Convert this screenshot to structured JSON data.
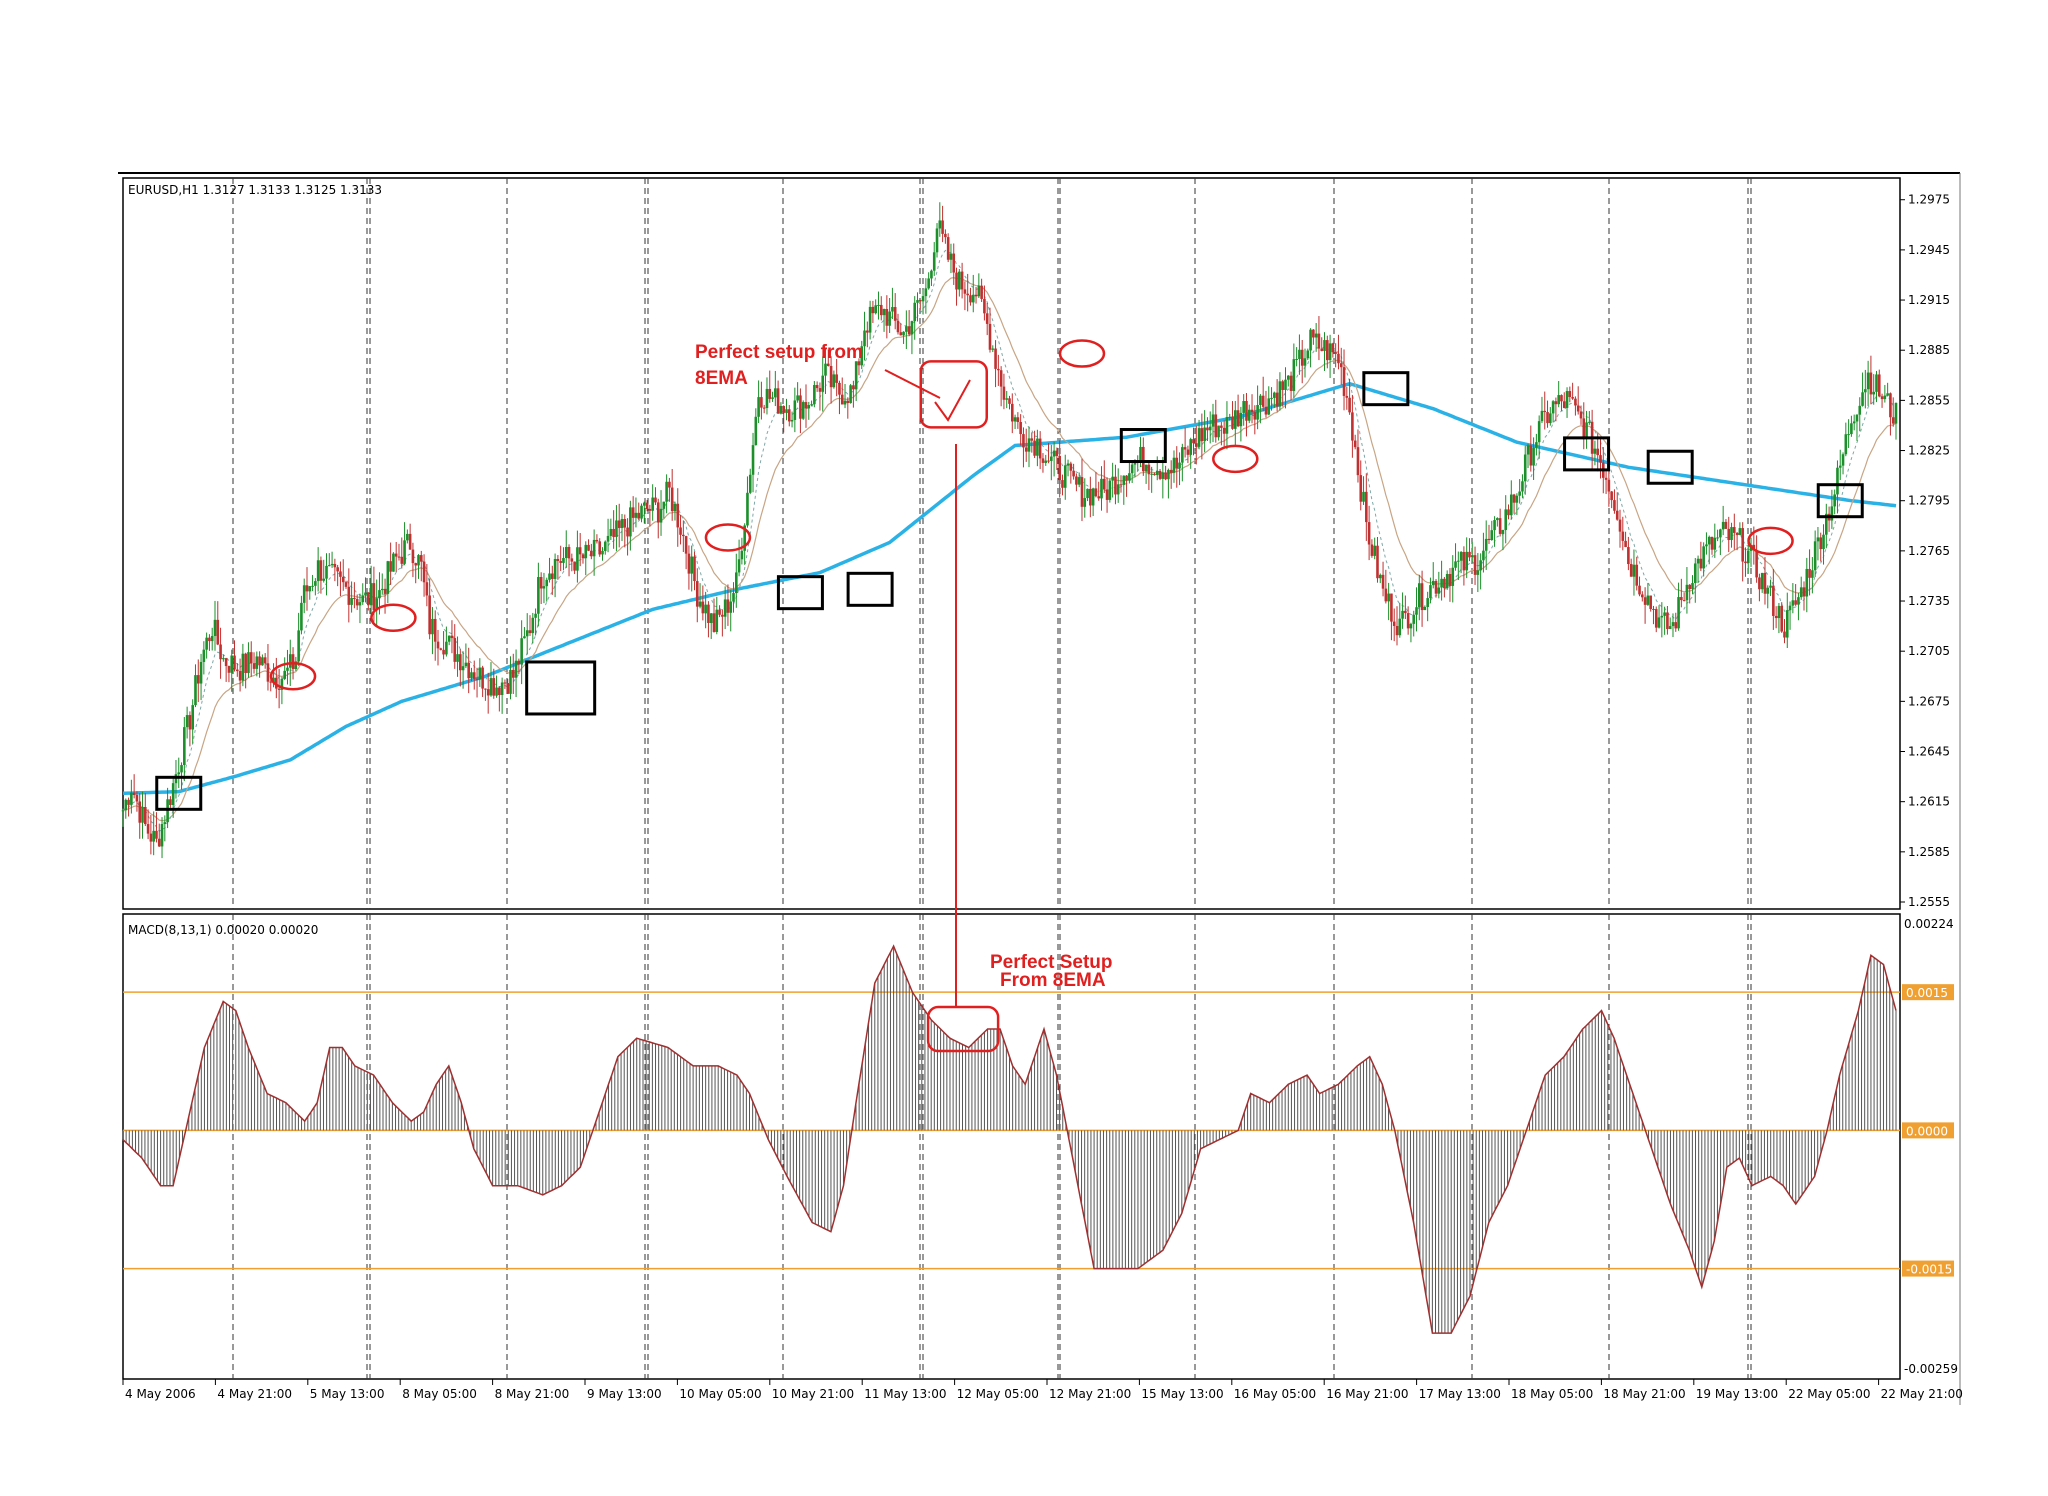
{
  "window": {
    "symbol_header": "EURUSD,H1  1.3127 1.3133 1.3125 1.3133"
  },
  "colors": {
    "bull": "#1a8f2a",
    "bear": "#c03030",
    "sma": "#2ab2e6",
    "ema_fast": "#7fa8a8",
    "ema_slow": "#c8a585",
    "macd_line": "#a03030",
    "level": "#f0a030",
    "annotation": "#e02020",
    "box": "#000000",
    "frame": "#000000"
  },
  "annotations": {
    "upper_text_1": "Perfect setup from",
    "upper_text_2": "8EMA",
    "lower_text_1": "Perfect Setup",
    "lower_text_2": "From 8EMA"
  },
  "chart_data": [
    {
      "type": "candlestick",
      "title": "EURUSD,H1  1.3127 1.3133 1.3125 1.3133",
      "price_labels": [
        "1.2975",
        "1.2945",
        "1.2915",
        "1.2885",
        "1.2855",
        "1.2825",
        "1.2795",
        "1.2765",
        "1.2735",
        "1.2705",
        "1.2675",
        "1.2645",
        "1.2615",
        "1.2585",
        "1.2555"
      ],
      "ylim": [
        1.2555,
        1.2985
      ],
      "x_tick_labels": [
        "4 May 2006",
        "4 May 21:00",
        "5 May 13:00",
        "8 May 05:00",
        "8 May 21:00",
        "9 May 13:00",
        "10 May 05:00",
        "10 May 21:00",
        "11 May 13:00",
        "12 May 05:00",
        "12 May 21:00",
        "15 May 13:00",
        "16 May 05:00",
        "16 May 21:00",
        "17 May 13:00",
        "18 May 05:00",
        "18 May 21:00",
        "19 May 13:00",
        "22 May 05:00",
        "22 May 21:00"
      ],
      "close_path": [
        [
          0,
          1.261
        ],
        [
          3,
          1.2625
        ],
        [
          8,
          1.26
        ],
        [
          12,
          1.259
        ],
        [
          18,
          1.2625
        ],
        [
          24,
          1.2665
        ],
        [
          28,
          1.27
        ],
        [
          32,
          1.272
        ],
        [
          36,
          1.27
        ],
        [
          42,
          1.2695
        ],
        [
          48,
          1.27
        ],
        [
          54,
          1.269
        ],
        [
          58,
          1.269
        ],
        [
          62,
          1.27
        ],
        [
          64,
          1.2735
        ],
        [
          70,
          1.2755
        ],
        [
          78,
          1.2745
        ],
        [
          86,
          1.2735
        ],
        [
          92,
          1.274
        ],
        [
          98,
          1.276
        ],
        [
          103,
          1.277
        ],
        [
          107,
          1.2755
        ],
        [
          110,
          1.272
        ],
        [
          116,
          1.271
        ],
        [
          122,
          1.27
        ],
        [
          128,
          1.269
        ],
        [
          134,
          1.2685
        ],
        [
          140,
          1.269
        ],
        [
          146,
          1.272
        ],
        [
          150,
          1.275
        ],
        [
          156,
          1.276
        ],
        [
          164,
          1.276
        ],
        [
          172,
          1.2765
        ],
        [
          180,
          1.278
        ],
        [
          188,
          1.279
        ],
        [
          192,
          1.279
        ],
        [
          196,
          1.28
        ],
        [
          200,
          1.278
        ],
        [
          206,
          1.274
        ],
        [
          212,
          1.272
        ],
        [
          216,
          1.273
        ],
        [
          220,
          1.2745
        ],
        [
          224,
          1.28
        ],
        [
          228,
          1.286
        ],
        [
          234,
          1.2855
        ],
        [
          240,
          1.285
        ],
        [
          246,
          1.2855
        ],
        [
          252,
          1.287
        ],
        [
          256,
          1.286
        ],
        [
          262,
          1.286
        ],
        [
          266,
          1.29
        ],
        [
          272,
          1.291
        ],
        [
          280,
          1.2895
        ],
        [
          288,
          1.292
        ],
        [
          292,
          1.296
        ],
        [
          296,
          1.294
        ],
        [
          300,
          1.2925
        ],
        [
          306,
          1.292
        ],
        [
          310,
          1.29
        ],
        [
          316,
          1.286
        ],
        [
          322,
          1.2835
        ],
        [
          328,
          1.283
        ],
        [
          332,
          1.282
        ],
        [
          338,
          1.281
        ],
        [
          344,
          1.28
        ],
        [
          352,
          1.28
        ],
        [
          360,
          1.2815
        ],
        [
          366,
          1.282
        ],
        [
          372,
          1.2815
        ],
        [
          378,
          1.2815
        ],
        [
          384,
          1.283
        ],
        [
          390,
          1.284
        ],
        [
          396,
          1.284
        ],
        [
          402,
          1.285
        ],
        [
          410,
          1.2855
        ],
        [
          418,
          1.2865
        ],
        [
          426,
          1.289
        ],
        [
          432,
          1.2885
        ],
        [
          436,
          1.288
        ],
        [
          440,
          1.285
        ],
        [
          446,
          1.278
        ],
        [
          452,
          1.274
        ],
        [
          458,
          1.272
        ],
        [
          464,
          1.2735
        ],
        [
          470,
          1.2745
        ],
        [
          478,
          1.2755
        ],
        [
          486,
          1.276
        ],
        [
          494,
          1.278
        ],
        [
          500,
          1.28
        ],
        [
          506,
          1.283
        ],
        [
          512,
          1.285
        ],
        [
          518,
          1.2855
        ],
        [
          524,
          1.284
        ],
        [
          530,
          1.282
        ],
        [
          536,
          1.279
        ],
        [
          540,
          1.276
        ],
        [
          546,
          1.274
        ],
        [
          552,
          1.272
        ],
        [
          556,
          1.272
        ],
        [
          562,
          1.275
        ],
        [
          568,
          1.2765
        ],
        [
          574,
          1.2775
        ],
        [
          580,
          1.277
        ],
        [
          584,
          1.276
        ],
        [
          590,
          1.274
        ],
        [
          596,
          1.272
        ],
        [
          602,
          1.274
        ],
        [
          608,
          1.277
        ],
        [
          614,
          1.28
        ],
        [
          620,
          1.2845
        ],
        [
          626,
          1.287
        ],
        [
          632,
          1.2855
        ],
        [
          636,
          1.2845
        ]
      ],
      "sma_path": [
        [
          0,
          1.262
        ],
        [
          20,
          1.2621
        ],
        [
          40,
          1.263
        ],
        [
          60,
          1.264
        ],
        [
          80,
          1.266
        ],
        [
          100,
          1.2675
        ],
        [
          130,
          1.269
        ],
        [
          160,
          1.271
        ],
        [
          190,
          1.273
        ],
        [
          220,
          1.2742
        ],
        [
          250,
          1.2752
        ],
        [
          275,
          1.277
        ],
        [
          305,
          1.281
        ],
        [
          320,
          1.2828
        ],
        [
          360,
          1.2833
        ],
        [
          400,
          1.2845
        ],
        [
          440,
          1.2865
        ],
        [
          470,
          1.285
        ],
        [
          500,
          1.283
        ],
        [
          540,
          1.2815
        ],
        [
          580,
          1.2805
        ],
        [
          620,
          1.2795
        ],
        [
          636,
          1.2792
        ]
      ],
      "boxes": [
        [
          20,
          1.262
        ],
        [
          157,
          1.2683
        ],
        [
          243,
          1.274
        ],
        [
          268,
          1.2742
        ],
        [
          366,
          1.2828
        ],
        [
          453,
          1.2862
        ],
        [
          525,
          1.2823
        ],
        [
          555,
          1.2815
        ],
        [
          616,
          1.2795
        ]
      ],
      "ellipses": [
        [
          61,
          1.269
        ],
        [
          97,
          1.2725
        ],
        [
          217,
          1.2773
        ],
        [
          344,
          1.2883
        ],
        [
          399,
          1.282
        ],
        [
          591,
          1.2771
        ]
      ],
      "setup_ellipse": [
        298,
        1.2858
      ]
    },
    {
      "type": "histogram",
      "title": "MACD(8,13,1) 0.00020 0.00020",
      "axis_labels": [
        "0.00224",
        "-0.00259"
      ],
      "levels": [
        {
          "value": 0.0015,
          "label": "0.0015"
        },
        {
          "value": 0.0,
          "label": "0.0000"
        },
        {
          "value": -0.0015,
          "label": "-0.0015"
        }
      ],
      "ylim": [
        -0.00259,
        0.00224
      ],
      "values_path": [
        [
          0,
          -0.0001
        ],
        [
          6,
          -0.0003
        ],
        [
          12,
          -0.0006
        ],
        [
          16,
          -0.0006
        ],
        [
          20,
          0.0
        ],
        [
          26,
          0.0009
        ],
        [
          32,
          0.0014
        ],
        [
          36,
          0.0013
        ],
        [
          40,
          0.0009
        ],
        [
          46,
          0.0004
        ],
        [
          52,
          0.0003
        ],
        [
          58,
          0.0001
        ],
        [
          62,
          0.0003
        ],
        [
          66,
          0.0009
        ],
        [
          70,
          0.0009
        ],
        [
          74,
          0.0007
        ],
        [
          80,
          0.0006
        ],
        [
          86,
          0.0003
        ],
        [
          92,
          0.0001
        ],
        [
          96,
          0.0002
        ],
        [
          100,
          0.0005
        ],
        [
          104,
          0.0007
        ],
        [
          108,
          0.0003
        ],
        [
          112,
          -0.0002
        ],
        [
          118,
          -0.0006
        ],
        [
          126,
          -0.0006
        ],
        [
          134,
          -0.0007
        ],
        [
          140,
          -0.0006
        ],
        [
          146,
          -0.0004
        ],
        [
          152,
          0.0002
        ],
        [
          158,
          0.0008
        ],
        [
          164,
          0.001
        ],
        [
          174,
          0.0009
        ],
        [
          182,
          0.0007
        ],
        [
          190,
          0.0007
        ],
        [
          196,
          0.0006
        ],
        [
          200,
          0.0004
        ],
        [
          206,
          -0.0001
        ],
        [
          212,
          -0.0005
        ],
        [
          220,
          -0.001
        ],
        [
          226,
          -0.0011
        ],
        [
          230,
          -0.0006
        ],
        [
          234,
          0.0003
        ],
        [
          240,
          0.0016
        ],
        [
          246,
          0.002
        ],
        [
          252,
          0.0015
        ],
        [
          258,
          0.0012
        ],
        [
          264,
          0.001
        ],
        [
          270,
          0.0009
        ],
        [
          276,
          0.0011
        ],
        [
          280,
          0.0011
        ],
        [
          284,
          0.0007
        ],
        [
          288,
          0.0005
        ],
        [
          294,
          0.0011
        ],
        [
          298,
          0.0006
        ],
        [
          302,
          -0.0001
        ],
        [
          306,
          -0.0008
        ],
        [
          310,
          -0.0015
        ],
        [
          316,
          -0.0015
        ],
        [
          324,
          -0.0015
        ],
        [
          332,
          -0.0013
        ],
        [
          338,
          -0.0009
        ],
        [
          344,
          -0.0002
        ],
        [
          350,
          -0.0001
        ],
        [
          356,
          0.0
        ],
        [
          360,
          0.0004
        ],
        [
          366,
          0.0003
        ],
        [
          372,
          0.0005
        ],
        [
          378,
          0.0006
        ],
        [
          382,
          0.0004
        ],
        [
          388,
          0.0005
        ],
        [
          394,
          0.0007
        ],
        [
          398,
          0.0008
        ],
        [
          402,
          0.0005
        ],
        [
          406,
          0.0
        ],
        [
          412,
          -0.001
        ],
        [
          418,
          -0.0022
        ],
        [
          424,
          -0.0022
        ],
        [
          430,
          -0.0018
        ],
        [
          436,
          -0.001
        ],
        [
          442,
          -0.0006
        ],
        [
          446,
          -0.0002
        ],
        [
          450,
          0.0002
        ],
        [
          454,
          0.0006
        ],
        [
          460,
          0.0008
        ],
        [
          466,
          0.0011
        ],
        [
          472,
          0.0013
        ],
        [
          476,
          0.001
        ],
        [
          482,
          0.0004
        ],
        [
          486,
          0.0
        ],
        [
          490,
          -0.0004
        ],
        [
          494,
          -0.0008
        ],
        [
          500,
          -0.0013
        ],
        [
          504,
          -0.0017
        ],
        [
          508,
          -0.0012
        ],
        [
          512,
          -0.0004
        ],
        [
          516,
          -0.0003
        ],
        [
          520,
          -0.0006
        ],
        [
          526,
          -0.0005
        ],
        [
          530,
          -0.0006
        ],
        [
          534,
          -0.0008
        ],
        [
          540,
          -0.0005
        ],
        [
          544,
          0.0
        ],
        [
          548,
          0.0006
        ],
        [
          554,
          0.0013
        ],
        [
          558,
          0.0019
        ],
        [
          562,
          0.0018
        ],
        [
          566,
          0.0013
        ]
      ],
      "setup_ellipse": [
        301,
        0.0011
      ]
    }
  ]
}
